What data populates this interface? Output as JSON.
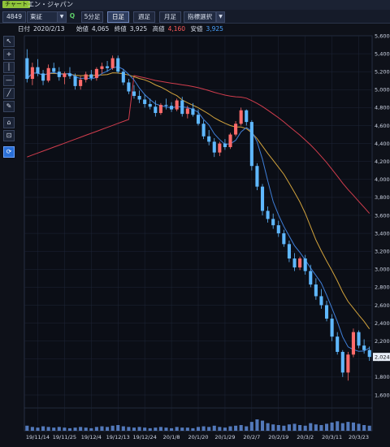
{
  "window": {
    "badge": "チャート",
    "title": "エン・ジャパン"
  },
  "toolbar": {
    "code": "4849",
    "market": "東証",
    "search_icon": "magnifier-icon",
    "tabs": [
      "5分足",
      "日足",
      "週足",
      "月足"
    ],
    "active_tab": "日足",
    "indicator_select": "指標選択"
  },
  "ohlc": {
    "date_label": "日付",
    "date": "2020/2/13",
    "open_label": "始値",
    "open": "4,065",
    "close_label": "終値",
    "close": "3,925",
    "high_label": "高値",
    "high": "4,160",
    "low_label": "安値",
    "low": "3,925"
  },
  "colors": {
    "up": "#ff6b6b",
    "down": "#5fb8ff",
    "ma_short": "#3f7fd9",
    "ma_mid": "#d1a23c",
    "ma_long": "#d13d4d"
  },
  "chart_data": {
    "type": "candlestick",
    "ylim": [
      1600,
      5600
    ],
    "yticks": [
      "5,600",
      "5,400",
      "5,200",
      "5,000",
      "4,800",
      "4,600",
      "4,400",
      "4,200",
      "4,000",
      "3,800",
      "3,600",
      "3,400",
      "3,200",
      "3,000",
      "2,800",
      "2,600",
      "2,400",
      "2,200",
      "2,000",
      "1,800",
      "1,600"
    ],
    "xtick_labels": [
      "19/11/14",
      "19/11/25",
      "19/12/4",
      "19/12/13",
      "19/12/24",
      "20/1/8",
      "20/1/20",
      "20/1/29",
      "20/2/7",
      "20/2/19",
      "20/3/2",
      "20/3/11",
      "20/3/23"
    ],
    "last_price_label": "2,024",
    "candles": [
      [
        5350,
        5450,
        5080,
        5120
      ],
      [
        5120,
        5300,
        5050,
        5250
      ],
      [
        5250,
        5340,
        5150,
        5180
      ],
      [
        5180,
        5220,
        5050,
        5100
      ],
      [
        5100,
        5280,
        5080,
        5240
      ],
      [
        5240,
        5300,
        5180,
        5200
      ],
      [
        5200,
        5250,
        5100,
        5140
      ],
      [
        5140,
        5200,
        5060,
        5180
      ],
      [
        5180,
        5250,
        5120,
        5150
      ],
      [
        5150,
        5180,
        5000,
        5040
      ],
      [
        5040,
        5150,
        5000,
        5110
      ],
      [
        5110,
        5200,
        5080,
        5170
      ],
      [
        5170,
        5220,
        5100,
        5130
      ],
      [
        5130,
        5250,
        5100,
        5230
      ],
      [
        5230,
        5300,
        5180,
        5260
      ],
      [
        5260,
        5320,
        5200,
        5240
      ],
      [
        5240,
        5380,
        5220,
        5350
      ],
      [
        5350,
        5380,
        5180,
        5200
      ],
      [
        5200,
        5230,
        5050,
        5080
      ],
      [
        5080,
        5120,
        4950,
        4980
      ],
      [
        4980,
        5050,
        4900,
        4930
      ],
      [
        4930,
        4990,
        4850,
        4890
      ],
      [
        4890,
        4950,
        4800,
        4840
      ],
      [
        4840,
        4900,
        4780,
        4810
      ],
      [
        4810,
        4880,
        4700,
        4740
      ],
      [
        4740,
        4850,
        4720,
        4830
      ],
      [
        4830,
        4900,
        4780,
        4820
      ],
      [
        4820,
        4860,
        4750,
        4780
      ],
      [
        4780,
        4900,
        4760,
        4880
      ],
      [
        4880,
        4920,
        4700,
        4730
      ],
      [
        4730,
        4820,
        4680,
        4790
      ],
      [
        4790,
        4850,
        4700,
        4720
      ],
      [
        4720,
        4780,
        4600,
        4620
      ],
      [
        4620,
        4660,
        4450,
        4480
      ],
      [
        4480,
        4550,
        4380,
        4420
      ],
      [
        4420,
        4460,
        4250,
        4300
      ],
      [
        4300,
        4420,
        4260,
        4400
      ],
      [
        4400,
        4450,
        4330,
        4360
      ],
      [
        4360,
        4520,
        4340,
        4500
      ],
      [
        4500,
        4650,
        4480,
        4620
      ],
      [
        4620,
        4800,
        4600,
        4770
      ],
      [
        4770,
        4780,
        4600,
        4640
      ],
      [
        4640,
        4660,
        4100,
        4150
      ],
      [
        4150,
        4180,
        3880,
        3920
      ],
      [
        3920,
        3950,
        3600,
        3650
      ],
      [
        3650,
        3700,
        3520,
        3560
      ],
      [
        3560,
        3620,
        3450,
        3490
      ],
      [
        3490,
        3540,
        3360,
        3400
      ],
      [
        3400,
        3440,
        3250,
        3280
      ],
      [
        3280,
        3320,
        3080,
        3120
      ],
      [
        3120,
        3180,
        2980,
        3020
      ],
      [
        3020,
        3140,
        2990,
        3120
      ],
      [
        3120,
        3160,
        2940,
        2980
      ],
      [
        2980,
        3050,
        2800,
        2830
      ],
      [
        2830,
        2900,
        2660,
        2700
      ],
      [
        2700,
        2780,
        2560,
        2600
      ],
      [
        2600,
        2650,
        2420,
        2450
      ],
      [
        2450,
        2500,
        2200,
        2250
      ],
      [
        2250,
        2300,
        2050,
        2080
      ],
      [
        2080,
        2100,
        1800,
        1850
      ],
      [
        1850,
        2080,
        1760,
        2050
      ],
      [
        2050,
        2340,
        2020,
        2300
      ],
      [
        2300,
        2320,
        2120,
        2150
      ],
      [
        2150,
        2220,
        2060,
        2100
      ],
      [
        2100,
        2140,
        1980,
        2024
      ]
    ],
    "volume": [
      8,
      6,
      5,
      7,
      6,
      5,
      6,
      5,
      4,
      5,
      6,
      5,
      4,
      6,
      7,
      6,
      8,
      9,
      7,
      6,
      5,
      6,
      5,
      4,
      5,
      6,
      5,
      4,
      6,
      5,
      5,
      4,
      6,
      7,
      6,
      8,
      6,
      5,
      7,
      8,
      9,
      7,
      14,
      18,
      16,
      12,
      10,
      9,
      8,
      10,
      11,
      9,
      8,
      12,
      10,
      9,
      11,
      13,
      15,
      12,
      14,
      13,
      11,
      9,
      8
    ]
  }
}
